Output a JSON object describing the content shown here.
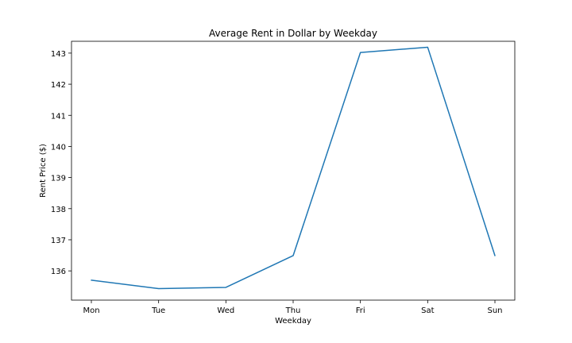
{
  "chart_data": {
    "type": "line",
    "title": "Average Rent in Dollar by Weekday",
    "xlabel": "Weekday",
    "ylabel": "Rent Price ($)",
    "categories": [
      "Mon",
      "Tue",
      "Wed",
      "Thu",
      "Fri",
      "Sat",
      "Sun"
    ],
    "series": [
      {
        "values": [
          135.7,
          135.43,
          135.47,
          136.49,
          143.02,
          143.19,
          136.49
        ],
        "color": "#1f77b4"
      }
    ],
    "ylim": [
      135.06,
      143.38
    ],
    "yticks": [
      136,
      137,
      138,
      139,
      140,
      141,
      142,
      143
    ],
    "grid": false,
    "legend": "none"
  }
}
